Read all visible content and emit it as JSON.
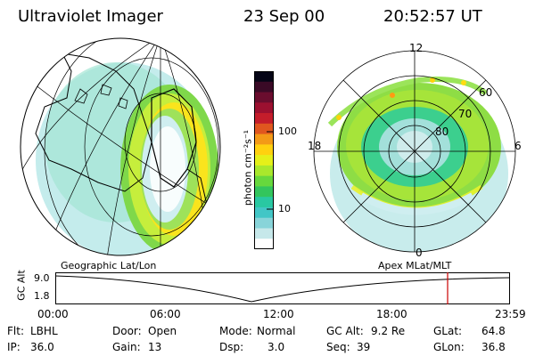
{
  "header": {
    "title": "Ultraviolet Imager",
    "date": "23 Sep 00",
    "time": "20:52:57 UT"
  },
  "colorbar": {
    "label": "photon cm⁻²s⁻¹",
    "ticks": [
      "100",
      "10"
    ],
    "colors": [
      "#050516",
      "#3a0a26",
      "#6a0d2e",
      "#9c1030",
      "#c41d2b",
      "#e0571f",
      "#f39a17",
      "#ffd10f",
      "#e5f019",
      "#a9e82c",
      "#67d83d",
      "#33c55d",
      "#29c8a2",
      "#42c6c6",
      "#88d4d9",
      "#c6e8ea",
      "#ffffff"
    ]
  },
  "left_panel": {
    "label": "Geographic Lat/Lon",
    "image_id": "north-america-uv-map",
    "colors": {
      "land": "#000000",
      "aurora_inner": "#ffcc22",
      "aurora_outer": "#4cc94a",
      "background": "#bfe9ea"
    }
  },
  "right_panel": {
    "label": "Apex MLat/MLT",
    "mlt_labels": [
      "12",
      "18",
      "6",
      "0"
    ],
    "lat_labels": [
      "60",
      "70",
      "80"
    ]
  },
  "timeline": {
    "ylabel": "GC Alt",
    "yticks": [
      "9.0",
      "1.8"
    ],
    "xticks": [
      "00:00",
      "06:00",
      "12:00",
      "18:00",
      "23:59"
    ],
    "marker_color": "#cc0000"
  },
  "info": {
    "filter_label": "Flt:",
    "filter_value": "LBHL",
    "ip_label": "IP:",
    "ip_value": "36.0",
    "door_label": "Door:",
    "door_value": "Open",
    "gain_label": "Gain:",
    "gain_value": "13",
    "mode_label": "Mode:",
    "mode_value": "Normal",
    "dsp_label": "Dsp:",
    "dsp_value": "3.0",
    "gcalt_label": "GC Alt:",
    "gcalt_value": "9.2 Re",
    "seq_label": "Seq:",
    "seq_value": "39",
    "glat_label": "GLat:",
    "glat_value": "64.8",
    "glon_label": "GLon:",
    "glon_value": "36.8"
  }
}
